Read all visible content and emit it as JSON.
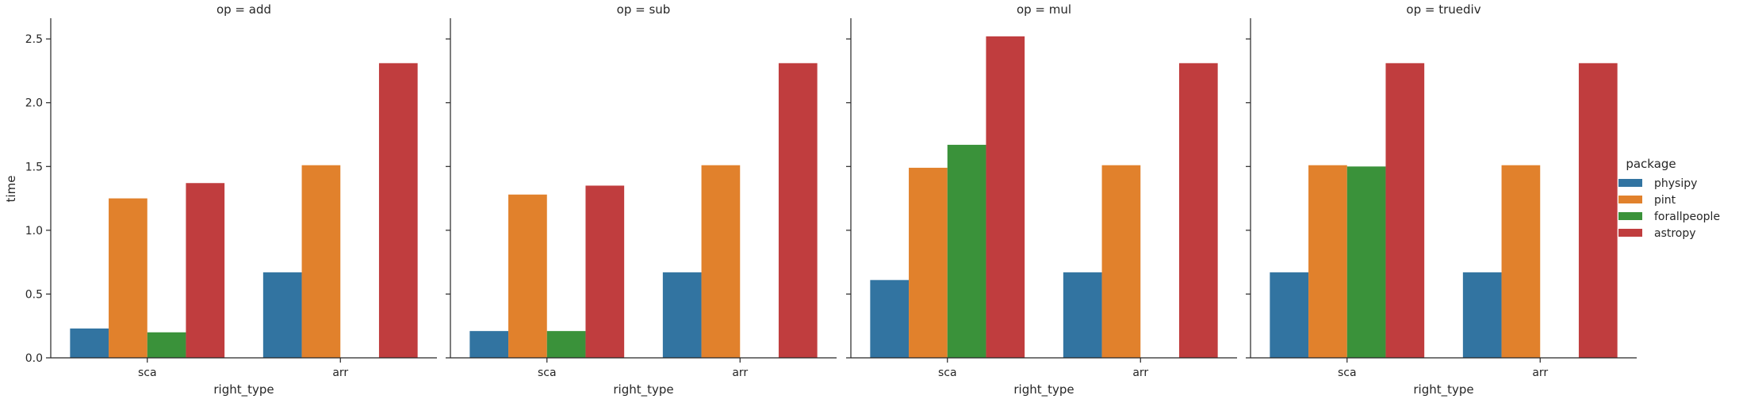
{
  "chart_data": {
    "type": "bar",
    "facet_label_prefix": "op = ",
    "panels": [
      {
        "op": "add",
        "series": [
          {
            "name": "physipy",
            "values": [
              0.23,
              0.67
            ]
          },
          {
            "name": "pint",
            "values": [
              1.25,
              1.51
            ]
          },
          {
            "name": "forallpeople",
            "values": [
              0.2,
              null
            ]
          },
          {
            "name": "astropy",
            "values": [
              1.37,
              2.31
            ]
          }
        ]
      },
      {
        "op": "sub",
        "series": [
          {
            "name": "physipy",
            "values": [
              0.21,
              0.67
            ]
          },
          {
            "name": "pint",
            "values": [
              1.28,
              1.51
            ]
          },
          {
            "name": "forallpeople",
            "values": [
              0.21,
              null
            ]
          },
          {
            "name": "astropy",
            "values": [
              1.35,
              2.31
            ]
          }
        ]
      },
      {
        "op": "mul",
        "series": [
          {
            "name": "physipy",
            "values": [
              0.61,
              0.67
            ]
          },
          {
            "name": "pint",
            "values": [
              1.49,
              1.51
            ]
          },
          {
            "name": "forallpeople",
            "values": [
              1.67,
              null
            ]
          },
          {
            "name": "astropy",
            "values": [
              2.52,
              2.31
            ]
          }
        ]
      },
      {
        "op": "truediv",
        "series": [
          {
            "name": "physipy",
            "values": [
              0.67,
              0.67
            ]
          },
          {
            "name": "pint",
            "values": [
              1.51,
              1.51
            ]
          },
          {
            "name": "forallpeople",
            "values": [
              1.5,
              null
            ]
          },
          {
            "name": "astropy",
            "values": [
              2.31,
              2.31
            ]
          }
        ]
      }
    ],
    "categories": [
      "sca",
      "arr"
    ],
    "xlabel": "right_type",
    "ylabel": "time",
    "ylim": [
      0,
      2.65
    ],
    "yticks": [
      0.0,
      0.5,
      1.0,
      1.5,
      2.0,
      2.5
    ],
    "ytick_labels": [
      "0.0",
      "0.5",
      "1.0",
      "1.5",
      "2.0",
      "2.5"
    ],
    "legend": {
      "title": "package",
      "position": "right",
      "entries": [
        "physipy",
        "pint",
        "forallpeople",
        "astropy"
      ]
    },
    "colors": {
      "physipy": "#3274a1",
      "pint": "#e1812c",
      "forallpeople": "#3a923a",
      "astropy": "#c03d3e"
    },
    "grid": false
  }
}
